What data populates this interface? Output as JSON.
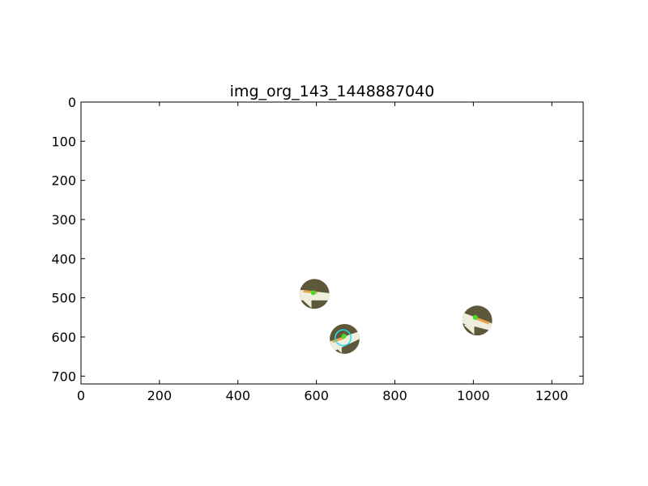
{
  "chart_data": {
    "type": "scatter",
    "title": "img_org_143_1448887040",
    "xlabel": "",
    "ylabel": "",
    "xlim": [
      0,
      1280
    ],
    "ylim": [
      720,
      0
    ],
    "y_inverted": true,
    "grid": false,
    "x_ticks": [
      0,
      200,
      400,
      600,
      800,
      1000,
      1200
    ],
    "y_ticks": [
      0,
      100,
      200,
      300,
      400,
      500,
      600,
      700
    ],
    "colors": {
      "patch_dark": "#5e583a",
      "patch_light": "#efeedd",
      "keypoint": "#44dd22",
      "segment": "#e8a64a",
      "highlight_ring": "#22e0f0"
    },
    "objects": [
      {
        "x": 595,
        "y": 490,
        "radius": 38,
        "keypoint": [
          592,
          487
        ],
        "segment": [
          [
            567,
            483
          ],
          [
            602,
            487
          ]
        ]
      },
      {
        "x": 672,
        "y": 605,
        "radius": 38,
        "keypoint": [
          670,
          598
        ],
        "segment": [
          [
            641,
            612
          ],
          [
            670,
            602
          ]
        ],
        "highlight": {
          "x": 668,
          "y": 602,
          "radius": 20
        }
      },
      {
        "x": 1010,
        "y": 558,
        "radius": 38,
        "keypoint": [
          1005,
          550
        ],
        "segment": [
          [
            1000,
            550
          ],
          [
            1040,
            565
          ]
        ]
      }
    ]
  }
}
